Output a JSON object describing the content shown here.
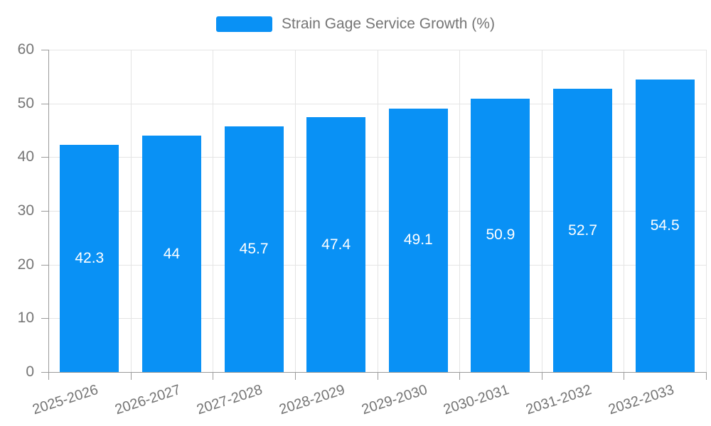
{
  "legend": {
    "label": "Strain Gage Service Growth (%)"
  },
  "colors": {
    "bar": "#0991f5",
    "axis_text": "#757575",
    "axis_line": "#9b9b9b",
    "gridline": "#e4e4e4",
    "value_label": "#ffffff"
  },
  "chart_data": {
    "type": "bar",
    "title": "Strain Gage Service Growth (%)",
    "categories": [
      "2025-2026",
      "2026-2027",
      "2027-2028",
      "2028-2029",
      "2029-2030",
      "2030-2031",
      "2031-2032",
      "2032-2033"
    ],
    "values": [
      42.3,
      44,
      45.7,
      47.4,
      49.1,
      50.9,
      52.7,
      54.5
    ],
    "value_labels": [
      "42.3",
      "44",
      "45.7",
      "47.4",
      "49.1",
      "50.9",
      "52.7",
      "54.5"
    ],
    "series": [
      {
        "name": "Strain Gage Service Growth (%)",
        "values": [
          42.3,
          44,
          45.7,
          47.4,
          49.1,
          50.9,
          52.7,
          54.5
        ]
      }
    ],
    "xlabel": "",
    "ylabel": "",
    "ylim": [
      0,
      60
    ],
    "yticks": [
      0,
      10,
      20,
      30,
      40,
      50,
      60
    ],
    "grid": true,
    "legend_position": "top-center",
    "x_label_rotation_deg": -18,
    "value_labels_inside_bars": true
  }
}
